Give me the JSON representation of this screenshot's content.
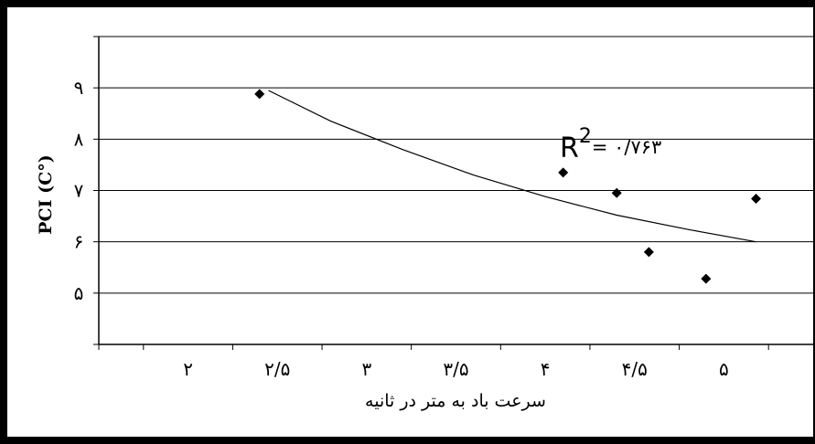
{
  "chart_data": {
    "type": "scatter",
    "title": "",
    "xlabel": "سرعت باد به متر در ثانیه",
    "ylabel": "PCI (C°)",
    "xlim": [
      1.5,
      5.5
    ],
    "ylim": [
      4,
      10
    ],
    "x_ticks": [
      2,
      2.5,
      3,
      3.5,
      4,
      4.5,
      5
    ],
    "x_tick_labels": [
      "۲",
      "۲/۵",
      "۳",
      "۳/۵",
      "۴",
      "۴/۵",
      "۵"
    ],
    "y_ticks": [
      5,
      6,
      7,
      8,
      9
    ],
    "y_tick_labels": [
      "۵",
      "۶",
      "۷",
      "۸",
      "۹"
    ],
    "grid": "horizontal",
    "legend": "none",
    "points": [
      {
        "x": 2.4,
        "y": 8.88
      },
      {
        "x": 4.1,
        "y": 7.35
      },
      {
        "x": 4.4,
        "y": 6.95
      },
      {
        "x": 4.58,
        "y": 5.8
      },
      {
        "x": 4.9,
        "y": 5.28
      },
      {
        "x": 5.18,
        "y": 6.84
      }
    ],
    "trendline": {
      "x": [
        2.45,
        2.8,
        3.2,
        3.6,
        4.0,
        4.4,
        4.8,
        5.18
      ],
      "y": [
        8.95,
        8.35,
        7.8,
        7.3,
        6.88,
        6.52,
        6.24,
        6.0
      ]
    },
    "annotation": {
      "r_label": "R",
      "r_sup": "2",
      "r_value": "= ۰/۷۶۳"
    },
    "colors": {
      "marker": "#000000",
      "line": "#000000",
      "grid": "#000000"
    }
  }
}
